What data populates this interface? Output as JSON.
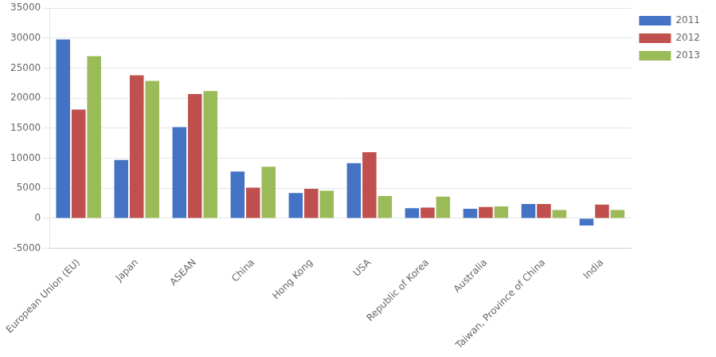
{
  "chart_data": {
    "type": "bar",
    "categories": [
      "European Union (EU)",
      "Japan",
      "ASEAN",
      "China",
      "Hong Kong",
      "USA",
      "Republic of Korea",
      "Australia",
      "Taiwan, Province of China",
      "India"
    ],
    "series": [
      {
        "name": "2011",
        "color": "#4472C4",
        "values": [
          29800,
          9700,
          15200,
          7800,
          4200,
          9200,
          1700,
          1600,
          2400,
          -1200
        ]
      },
      {
        "name": "2012",
        "color": "#C0504D",
        "values": [
          18100,
          23800,
          20700,
          5100,
          4900,
          11000,
          1800,
          1900,
          2400,
          2300
        ]
      },
      {
        "name": "2013",
        "color": "#9BBB59",
        "values": [
          27000,
          22900,
          21200,
          8600,
          4600,
          3700,
          3600,
          2000,
          1400,
          1400
        ]
      }
    ],
    "ylim": [
      -5000,
      35000
    ],
    "yticks": [
      -5000,
      0,
      5000,
      10000,
      15000,
      20000,
      25000,
      30000,
      35000
    ],
    "grid": true,
    "legend": "upper right"
  }
}
